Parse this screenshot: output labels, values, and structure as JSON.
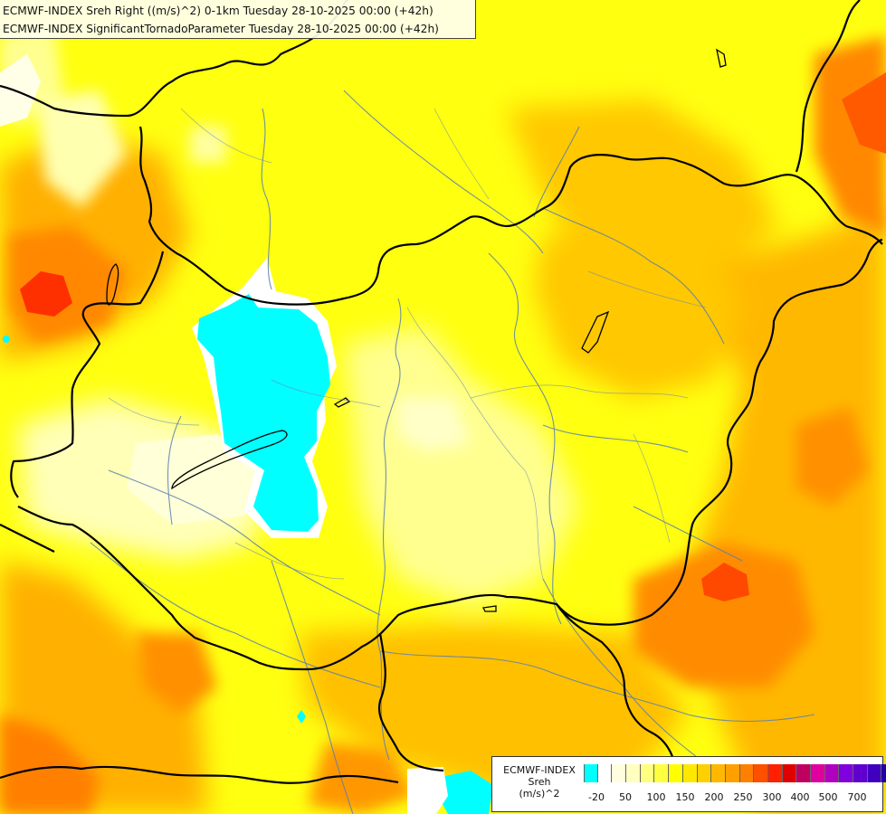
{
  "title_lines": [
    "ECMWF-INDEX Sreh Right ((m/s)^2) 0-1km Tuesday 28-10-2025 00:00 (+42h)",
    "ECMWF-INDEX SignificantTornadoParameter Tuesday 28-10-2025 00:00 (+42h)"
  ],
  "legend": {
    "model": "ECMWF-INDEX",
    "variable": "Sreh",
    "unit": "(m/s)^2",
    "colors": [
      "#00ffff",
      "#ffffff",
      "#ffffe0",
      "#ffffc0",
      "#ffff80",
      "#ffff40",
      "#ffff00",
      "#ffe800",
      "#ffd000",
      "#ffb800",
      "#ffa000",
      "#ff8000",
      "#ff5000",
      "#ff2000",
      "#e00000",
      "#c00060",
      "#e000a0",
      "#b000c0",
      "#8000e0",
      "#6000d0",
      "#4000c0",
      "#2000a0",
      "#000080"
    ],
    "tick_labels": [
      "-20",
      "50",
      "100",
      "150",
      "200",
      "250",
      "300",
      "400",
      "500",
      "700"
    ]
  },
  "colors": {
    "very_low": "#00ffff",
    "low": "#ffffc0",
    "mid": "#ffff00",
    "high": "#ffb800",
    "higher": "#ff8000",
    "max": "#ff2000",
    "borders": "#000000",
    "rivers": "#5a7fb0"
  }
}
